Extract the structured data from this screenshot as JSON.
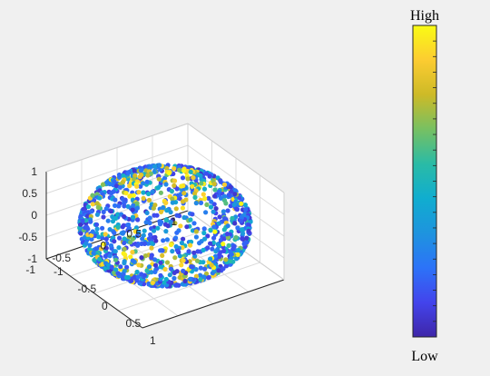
{
  "chart_data": {
    "type": "scatter",
    "title": "",
    "xlabel": "",
    "ylabel": "",
    "zlabel": "",
    "xlim": [
      -1,
      1
    ],
    "ylim": [
      -1,
      1
    ],
    "zlim": [
      -1,
      1
    ],
    "grid": true,
    "x_ticks": [
      "-1",
      "-0.5",
      "0",
      "0.5",
      "1"
    ],
    "y_ticks": [
      "-1",
      "-0.5",
      "0",
      "0.5",
      "1"
    ],
    "z_ticks": [
      "-1",
      "-0.5",
      "0",
      "0.5",
      "1"
    ],
    "shape": "points on the surface of the unit sphere",
    "colormap": "parula",
    "colorbar": {
      "high_label": "High",
      "low_label": "Low",
      "colors": [
        "#3e26a8",
        "#4344ec",
        "#2c73f8",
        "#1e94de",
        "#10adcf",
        "#2abba6",
        "#77c062",
        "#cdba27",
        "#fccc31",
        "#f9fb14"
      ]
    },
    "series": [
      {
        "points": [
          [
            0.0,
            0.0,
            1.0,
            0.85
          ],
          [
            0.2,
            0.3,
            0.93,
            0.8
          ],
          [
            -0.2,
            0.2,
            0.96,
            0.9
          ],
          [
            0.3,
            -0.2,
            0.93,
            0.15
          ],
          [
            -0.3,
            -0.3,
            0.9,
            0.2
          ],
          [
            0.5,
            0.1,
            0.86,
            0.3
          ],
          [
            -0.5,
            0.0,
            0.87,
            0.25
          ],
          [
            0.0,
            0.5,
            0.87,
            0.4
          ],
          [
            0.1,
            -0.5,
            0.86,
            0.7
          ],
          [
            0.0,
            0.0,
            -1.0,
            0.9
          ],
          [
            0.2,
            -0.3,
            -0.93,
            0.85
          ],
          [
            -0.3,
            0.2,
            -0.93,
            0.8
          ],
          [
            0.3,
            0.3,
            -0.9,
            0.2
          ],
          [
            -0.2,
            -0.2,
            -0.96,
            0.75
          ],
          [
            0.5,
            0.0,
            -0.86,
            0.3
          ],
          [
            -0.5,
            0.1,
            -0.86,
            0.25
          ],
          [
            0.0,
            0.5,
            -0.87,
            0.15
          ],
          [
            1.0,
            0.0,
            0.0,
            0.2
          ],
          [
            0.0,
            1.0,
            0.0,
            0.25
          ],
          [
            -1.0,
            0.0,
            0.0,
            0.15
          ],
          [
            0.0,
            -1.0,
            0.0,
            0.3
          ],
          [
            0.7,
            0.7,
            0.1,
            0.4
          ],
          [
            -0.7,
            0.7,
            -0.1,
            0.35
          ],
          [
            0.7,
            -0.7,
            0.0,
            0.3
          ],
          [
            -0.7,
            -0.7,
            0.1,
            0.2
          ],
          [
            0.5,
            0.5,
            0.7,
            0.6
          ],
          [
            -0.5,
            -0.5,
            -0.7,
            0.5
          ]
        ],
        "note_fourth_value": "color level 0 (Low) to 1 (High)"
      }
    ]
  }
}
